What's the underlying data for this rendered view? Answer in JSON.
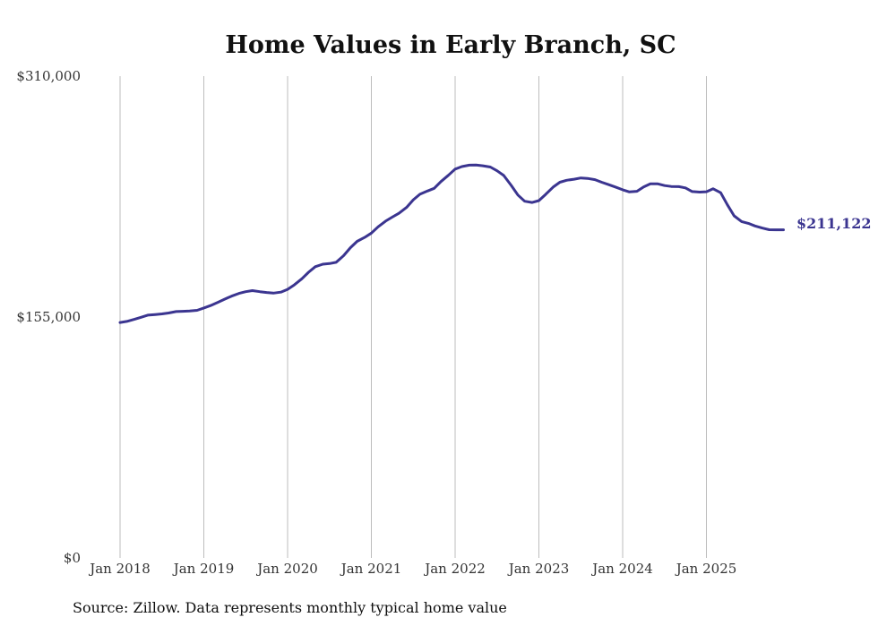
{
  "chart_data": {
    "type": "line",
    "title": "Home Values in Early Branch, SC",
    "source": "Source: Zillow. Data represents monthly typical home value",
    "ylim": [
      0,
      310000
    ],
    "yticks": [
      {
        "value": 0,
        "label": "$0"
      },
      {
        "value": 155000,
        "label": "$155,000"
      },
      {
        "value": 310000,
        "label": "$310,000"
      }
    ],
    "xticks": [
      {
        "value": 2018,
        "label": "Jan 2018"
      },
      {
        "value": 2019,
        "label": "Jan 2019"
      },
      {
        "value": 2020,
        "label": "Jan 2020"
      },
      {
        "value": 2021,
        "label": "Jan 2021"
      },
      {
        "value": 2022,
        "label": "Jan 2022"
      },
      {
        "value": 2023,
        "label": "Jan 2023"
      },
      {
        "value": 2024,
        "label": "Jan 2024"
      },
      {
        "value": 2025,
        "label": "Jan 2025"
      }
    ],
    "xlim": [
      2018,
      2025.92
    ],
    "line_color": "#3b3590",
    "end_label": "$211,122",
    "series": [
      {
        "name": "Typical home value",
        "x": [
          2018.0,
          2018.08,
          2018.17,
          2018.25,
          2018.33,
          2018.42,
          2018.5,
          2018.58,
          2018.67,
          2018.75,
          2018.83,
          2018.92,
          2019.0,
          2019.08,
          2019.17,
          2019.25,
          2019.33,
          2019.42,
          2019.5,
          2019.58,
          2019.67,
          2019.75,
          2019.83,
          2019.92,
          2020.0,
          2020.08,
          2020.17,
          2020.25,
          2020.33,
          2020.42,
          2020.5,
          2020.58,
          2020.67,
          2020.75,
          2020.83,
          2020.92,
          2021.0,
          2021.08,
          2021.17,
          2021.25,
          2021.33,
          2021.42,
          2021.5,
          2021.58,
          2021.67,
          2021.75,
          2021.83,
          2021.92,
          2022.0,
          2022.08,
          2022.17,
          2022.25,
          2022.33,
          2022.42,
          2022.5,
          2022.58,
          2022.67,
          2022.75,
          2022.83,
          2022.92,
          2023.0,
          2023.08,
          2023.17,
          2023.25,
          2023.33,
          2023.42,
          2023.5,
          2023.58,
          2023.67,
          2023.75,
          2023.83,
          2023.92,
          2024.0,
          2024.08,
          2024.17,
          2024.25,
          2024.33,
          2024.42,
          2024.5,
          2024.58,
          2024.67,
          2024.75,
          2024.83,
          2024.92,
          2025.0,
          2025.08,
          2025.17,
          2025.25,
          2025.33,
          2025.42,
          2025.5,
          2025.58,
          2025.67,
          2025.75,
          2025.83,
          2025.92
        ],
        "values": [
          151500,
          152200,
          153500,
          154800,
          156200,
          156600,
          157000,
          157600,
          158500,
          158700,
          158900,
          159300,
          160800,
          162400,
          164500,
          166500,
          168400,
          170200,
          171300,
          172000,
          171300,
          170800,
          170400,
          171000,
          172800,
          175700,
          179600,
          183800,
          187400,
          189000,
          189400,
          190200,
          194500,
          199600,
          203700,
          206200,
          209000,
          213000,
          216700,
          219300,
          221800,
          225500,
          230400,
          234000,
          236100,
          237800,
          242100,
          246200,
          250200,
          251800,
          252700,
          252800,
          252300,
          251500,
          249100,
          246100,
          239700,
          233500,
          229500,
          228700,
          229900,
          233900,
          238600,
          241700,
          243000,
          243700,
          244500,
          244200,
          243400,
          241700,
          240200,
          238500,
          236900,
          235500,
          235900,
          238700,
          240700,
          240700,
          239600,
          239000,
          238900,
          238100,
          235700,
          235400,
          235600,
          237500,
          235000,
          227200,
          220100,
          216400,
          215300,
          213600,
          212200,
          211200,
          211100,
          211122
        ]
      }
    ]
  }
}
